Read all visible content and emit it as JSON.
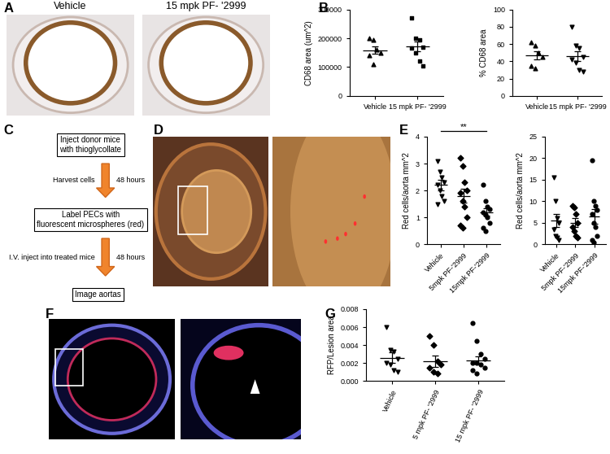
{
  "panel_letters": [
    "A",
    "B",
    "C",
    "D",
    "E",
    "F",
    "G"
  ],
  "image_labels": [
    "Vehicle",
    "15 mpk PF- '2999"
  ],
  "flowchart": {
    "steps": [
      "Inject donor mice\nwith thioglycollate",
      "Label PECs with\nfluorescent microspheres (red)",
      "Image aortas"
    ],
    "arrows": [
      {
        "left": "Harvest cells",
        "right": "48 hours"
      },
      {
        "left": "I.V. inject into treated mice",
        "right": "48 hours"
      }
    ]
  },
  "chart_data": [
    {
      "type": "dot",
      "ylabel": "CD68 area (um^2)",
      "categories": [
        "Vehicle",
        "15 mpk PF- '2999"
      ],
      "groups": [
        {
          "marker": "triangle_up",
          "values": [
            200000,
            195000,
            160000,
            150000,
            140000,
            110000
          ],
          "mean": 159000,
          "error": 14000
        },
        {
          "marker": "square",
          "values": [
            270000,
            200000,
            195000,
            170000,
            165000,
            150000,
            120000,
            105000
          ],
          "mean": 172000,
          "error": 18000
        }
      ],
      "ylim": [
        0,
        300000
      ],
      "yticks": [
        0,
        100000,
        200000,
        300000
      ]
    },
    {
      "type": "dot",
      "ylabel": "% CD68 area",
      "categories": [
        "Vehicle",
        "15 mpk PF- '2999"
      ],
      "groups": [
        {
          "marker": "triangle_up",
          "values": [
            62,
            58,
            50,
            45,
            35,
            32
          ],
          "mean": 47,
          "error": 5
        },
        {
          "marker": "triangle_down",
          "values": [
            80,
            58,
            55,
            45,
            42,
            38,
            30,
            28
          ],
          "mean": 46,
          "error": 6
        }
      ],
      "ylim": [
        0,
        100
      ],
      "yticks": [
        0,
        20,
        40,
        60,
        80,
        100
      ]
    },
    {
      "type": "dot",
      "ylabel": "Red cells/aorta mm^2",
      "categories": [
        "Vehicle",
        "5mpk PF-'2999",
        "15mpk PF-'2999"
      ],
      "groups": [
        {
          "marker": "triangle_down",
          "values": [
            3.1,
            2.7,
            2.5,
            2.3,
            2.2,
            2.0,
            1.8,
            1.6,
            1.5
          ],
          "mean": 2.2,
          "error": 0.2
        },
        {
          "marker": "diamond",
          "values": [
            3.2,
            2.9,
            2.3,
            2.0,
            1.9,
            1.6,
            1.4,
            1.0,
            0.7,
            0.6
          ],
          "mean": 1.8,
          "error": 0.25
        },
        {
          "marker": "circle",
          "values": [
            2.2,
            1.6,
            1.4,
            1.3,
            1.2,
            1.1,
            1.0,
            0.8,
            0.6,
            0.5
          ],
          "mean": 1.2,
          "error": 0.15
        }
      ],
      "ylim": [
        0,
        4
      ],
      "yticks": [
        0,
        1,
        2,
        3,
        4
      ],
      "significance": [
        {
          "between": [
            0,
            2
          ],
          "label": "**"
        }
      ]
    },
    {
      "type": "dot",
      "ylabel": "Red cells/aorta mm^2",
      "categories": [
        "Vehicle",
        "5mpk PF-'2999",
        "15mpk PF-'2999"
      ],
      "groups": [
        {
          "marker": "triangle_down",
          "values": [
            15.5,
            10,
            6,
            5,
            3.5,
            2,
            1.5,
            1
          ],
          "mean": 5.5,
          "error": 1.5
        },
        {
          "marker": "diamond",
          "values": [
            9,
            8.5,
            7,
            5,
            4,
            3,
            2,
            1.5
          ],
          "mean": 5,
          "error": 1
        },
        {
          "marker": "circle",
          "values": [
            19.5,
            10,
            9,
            8,
            7,
            5,
            4,
            2,
            1,
            0.5
          ],
          "mean": 6.5,
          "error": 1.7
        }
      ],
      "ylim": [
        0,
        25
      ],
      "yticks": [
        0,
        5,
        10,
        15,
        20,
        25
      ]
    },
    {
      "type": "dot",
      "ylabel": "RFP/Lesion area",
      "categories": [
        "Vehicle",
        "5 mpk PF- '2999",
        "15 mpk PF- '2999"
      ],
      "groups": [
        {
          "marker": "triangle_down",
          "values": [
            0.006,
            0.0035,
            0.0033,
            0.0025,
            0.002,
            0.0018,
            0.0012,
            0.001
          ],
          "mean": 0.0026,
          "error": 0.0006
        },
        {
          "marker": "diamond",
          "values": [
            0.005,
            0.004,
            0.0022,
            0.0018,
            0.0015,
            0.001,
            0.0008
          ],
          "mean": 0.0022,
          "error": 0.0006
        },
        {
          "marker": "circle",
          "values": [
            0.0065,
            0.0045,
            0.003,
            0.0025,
            0.002,
            0.002,
            0.0018,
            0.0015,
            0.0012,
            0.0008
          ],
          "mean": 0.0023,
          "error": 0.0004
        }
      ],
      "ylim": [
        0,
        0.008
      ],
      "yticks": [
        {
          "value": 0,
          "label": "0.000"
        },
        0.002,
        0.004,
        0.006,
        0.008
      ]
    }
  ]
}
